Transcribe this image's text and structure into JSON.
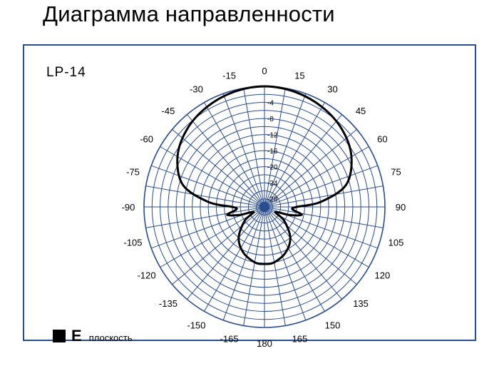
{
  "title": "Диаграмма направленности",
  "chart_data": {
    "type": "polar",
    "model": "LP-14",
    "legend": {
      "symbol": "■",
      "label": "E",
      "sublabel": "плоскость",
      "color": "#000000"
    },
    "grid_color": "#2a4d8f",
    "angle_ticks": [
      {
        "angle": 0,
        "label": "0"
      },
      {
        "angle": 15,
        "label": "15"
      },
      {
        "angle": 30,
        "label": "30"
      },
      {
        "angle": 45,
        "label": "45"
      },
      {
        "angle": 60,
        "label": "60"
      },
      {
        "angle": 75,
        "label": "75"
      },
      {
        "angle": 90,
        "label": "90"
      },
      {
        "angle": 105,
        "label": "105"
      },
      {
        "angle": 120,
        "label": "120"
      },
      {
        "angle": 135,
        "label": "135"
      },
      {
        "angle": 150,
        "label": "150"
      },
      {
        "angle": 165,
        "label": "165"
      },
      {
        "angle": 180,
        "label": "180"
      },
      {
        "angle": -165,
        "label": "-165"
      },
      {
        "angle": -150,
        "label": "-150"
      },
      {
        "angle": -135,
        "label": "-135"
      },
      {
        "angle": -120,
        "label": "-120"
      },
      {
        "angle": -105,
        "label": "-105"
      },
      {
        "angle": -90,
        "label": "-90"
      },
      {
        "angle": -75,
        "label": "-75"
      },
      {
        "angle": -60,
        "label": "-60"
      },
      {
        "angle": -45,
        "label": "-45"
      },
      {
        "angle": -30,
        "label": "-30"
      },
      {
        "angle": -15,
        "label": "-15"
      }
    ],
    "radial_ticks": [
      {
        "db": -4,
        "label": "-4"
      },
      {
        "db": -8,
        "label": "-8"
      },
      {
        "db": -12,
        "label": "-12"
      },
      {
        "db": -16,
        "label": "-16"
      },
      {
        "db": -20,
        "label": "-20"
      },
      {
        "db": -24,
        "label": "-24"
      },
      {
        "db": -28,
        "label": "-28"
      }
    ],
    "r_range": [
      -30,
      0
    ],
    "ring_step_db": 2,
    "spoke_step_deg": 10,
    "series": [
      {
        "color": "#000000",
        "points": [
          {
            "angle": 0,
            "db": 0
          },
          {
            "angle": 15,
            "db": -0.4
          },
          {
            "angle": 30,
            "db": -1.3
          },
          {
            "angle": 45,
            "db": -2.7
          },
          {
            "angle": 60,
            "db": -5
          },
          {
            "angle": 75,
            "db": -9
          },
          {
            "angle": 85,
            "db": -16
          },
          {
            "angle": 90,
            "db": -22
          },
          {
            "angle": 95,
            "db": -23
          },
          {
            "angle": 102,
            "db": -20.5
          },
          {
            "angle": 108,
            "db": -23.5
          },
          {
            "angle": 115,
            "db": -27
          },
          {
            "angle": 125,
            "db": -24
          },
          {
            "angle": 140,
            "db": -20
          },
          {
            "angle": 155,
            "db": -17.5
          },
          {
            "angle": 170,
            "db": -16
          },
          {
            "angle": 180,
            "db": -15.8
          },
          {
            "angle": 190,
            "db": -16
          },
          {
            "angle": 205,
            "db": -17.5
          },
          {
            "angle": 220,
            "db": -20
          },
          {
            "angle": 235,
            "db": -24
          },
          {
            "angle": 245,
            "db": -27
          },
          {
            "angle": 252,
            "db": -23.5
          },
          {
            "angle": 258,
            "db": -20.5
          },
          {
            "angle": 265,
            "db": -23
          },
          {
            "angle": 270,
            "db": -22
          },
          {
            "angle": 275,
            "db": -16
          },
          {
            "angle": 285,
            "db": -9
          },
          {
            "angle": 300,
            "db": -5
          },
          {
            "angle": 315,
            "db": -2.7
          },
          {
            "angle": 330,
            "db": -1.3
          },
          {
            "angle": 345,
            "db": -0.4
          }
        ]
      }
    ]
  }
}
